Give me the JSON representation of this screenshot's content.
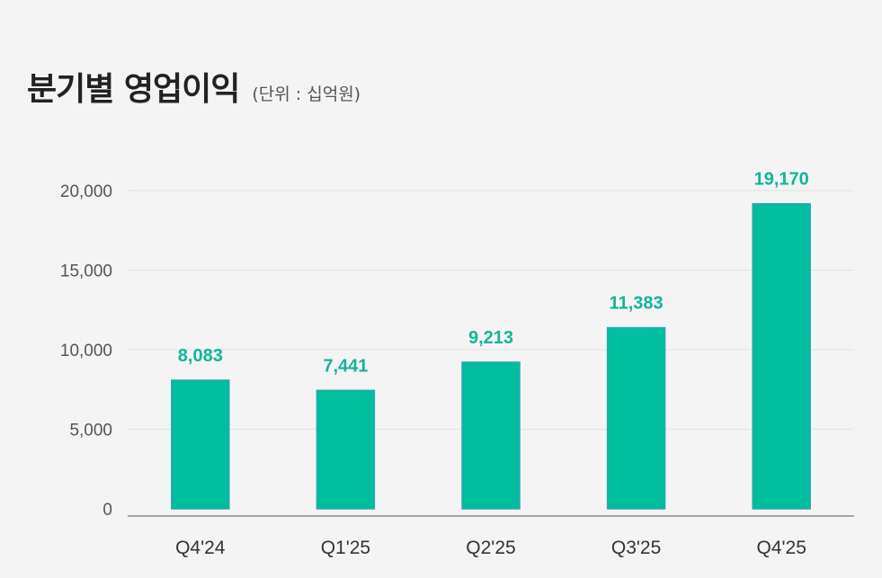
{
  "title": "분기별 영업이익",
  "unit_label": "(단위 : 십억원)",
  "colors": {
    "bar": "#00bd9d",
    "bar_edge": "#2aa9b0",
    "label": "#11b59b",
    "grid": "#e2e2e2",
    "axis": "#8a8a8a"
  },
  "chart_data": {
    "type": "bar",
    "title": "분기별 영업이익",
    "xlabel": "",
    "ylabel": "",
    "categories": [
      "Q4'24",
      "Q1'25",
      "Q2'25",
      "Q3'25",
      "Q4'25"
    ],
    "values": [
      8083,
      7441,
      9213,
      11383,
      19170
    ],
    "value_labels": [
      "8,083",
      "7,441",
      "9,213",
      "11,383",
      "19,170"
    ],
    "ylim": [
      0,
      20000
    ],
    "yticks": [
      0,
      5000,
      10000,
      15000,
      20000
    ],
    "ytick_labels": [
      "0",
      "5,000",
      "10,000",
      "15,000",
      "20,000"
    ],
    "grid": true,
    "legend": "none"
  }
}
